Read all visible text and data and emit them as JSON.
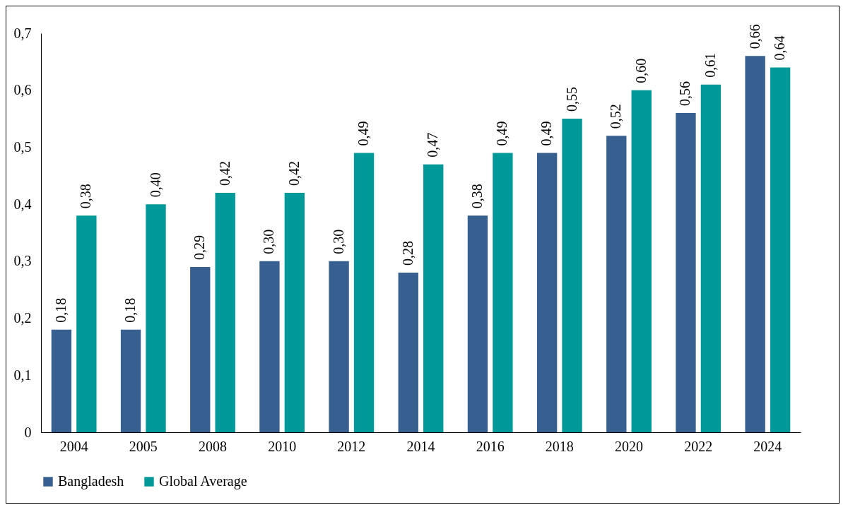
{
  "chart_data": {
    "type": "bar",
    "categories": [
      "2004",
      "2005",
      "2008",
      "2010",
      "2012",
      "2014",
      "2016",
      "2018",
      "2020",
      "2022",
      "2024"
    ],
    "series": [
      {
        "name": "Bangladesh",
        "color": "#375f8f",
        "values": [
          0.18,
          0.18,
          0.29,
          0.3,
          0.3,
          0.28,
          0.38,
          0.49,
          0.52,
          0.56,
          0.66
        ],
        "value_labels": [
          "0,18",
          "0,18",
          "0,29",
          "0,30",
          "0,30",
          "0,28",
          "0,38",
          "0,49",
          "0,52",
          "0,56",
          "0,66"
        ]
      },
      {
        "name": "Global Average",
        "color": "#009999",
        "values": [
          0.38,
          0.4,
          0.42,
          0.42,
          0.49,
          0.47,
          0.49,
          0.55,
          0.6,
          0.61,
          0.64
        ],
        "value_labels": [
          "0,38",
          "0,40",
          "0,42",
          "0,42",
          "0,49",
          "0,47",
          "0,49",
          "0,55",
          "0,60",
          "0,61",
          "0,64"
        ]
      }
    ],
    "ylim": [
      0,
      0.7
    ],
    "yticks": [
      0,
      {
        "value": 0.1,
        "label": "0,1"
      },
      {
        "value": 0.2,
        "label": "0,2"
      },
      {
        "value": 0.3,
        "label": "0,3"
      },
      {
        "value": 0.4,
        "label": "0,4"
      },
      {
        "value": 0.5,
        "label": "0,5"
      },
      {
        "value": 0.6,
        "label": "0,6"
      },
      {
        "value": 0.7,
        "label": "0,7"
      }
    ],
    "grid": false,
    "legend": "bottom"
  }
}
